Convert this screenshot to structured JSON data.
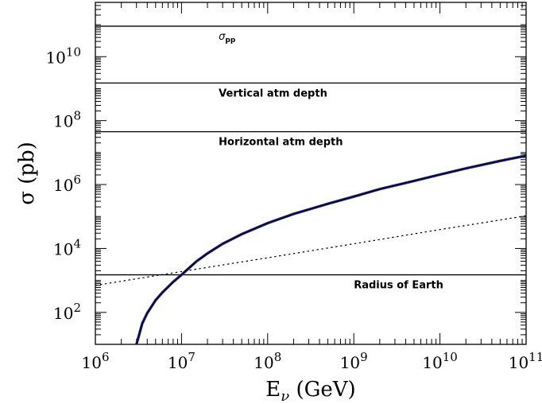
{
  "chart_data": {
    "type": "line",
    "x_scale": "log",
    "y_scale": "log",
    "xlim": [
      1000000.0,
      100000000000.0
    ],
    "ylim": [
      10,
      500000000000.0
    ],
    "grid": false,
    "xlabel": {
      "base": "E",
      "sub": "ν",
      "unit": " (GeV)"
    },
    "ylabel": "σ (pb)",
    "x_ticks": [
      {
        "value": 1000000.0,
        "base": "10",
        "exp": "6"
      },
      {
        "value": 10000000.0,
        "base": "10",
        "exp": "7"
      },
      {
        "value": 100000000.0,
        "base": "10",
        "exp": "8"
      },
      {
        "value": 1000000000.0,
        "base": "10",
        "exp": "9"
      },
      {
        "value": 10000000000.0,
        "base": "10",
        "exp": "10"
      },
      {
        "value": 100000000000.0,
        "base": "10",
        "exp": "11"
      }
    ],
    "y_ticks": [
      {
        "value": 100.0,
        "base": "10",
        "exp": "2"
      },
      {
        "value": 10000.0,
        "base": "10",
        "exp": "4"
      },
      {
        "value": 1000000.0,
        "base": "10",
        "exp": "6"
      },
      {
        "value": 100000000.0,
        "base": "10",
        "exp": "8"
      },
      {
        "value": 10000000000.0,
        "base": "10",
        "exp": "10"
      }
    ],
    "hlines": [
      {
        "y": 90000000000.0,
        "label": "σ",
        "label_sub": "pp",
        "label_x": 27000000.0,
        "label_side": "below"
      },
      {
        "y": 1500000000.0,
        "label": "Vertical atm depth",
        "label_x": 27000000.0,
        "label_side": "below"
      },
      {
        "y": 45000000.0,
        "label": "Horizontal atm depth",
        "label_x": 27000000.0,
        "label_side": "below"
      },
      {
        "y": 1500.0,
        "label": "Radius of Earth",
        "label_x": 1000000000.0,
        "label_side": "below"
      }
    ],
    "series": [
      {
        "style": "solid-blue",
        "color": "#2a2a9c",
        "x": [
          3000000.0,
          3500000.0,
          4000000.0,
          5000000.0,
          6000000.0,
          8000000.0,
          10000000.0,
          15000000.0,
          20000000.0,
          30000000.0,
          50000000.0,
          100000000.0,
          200000000.0,
          500000000.0,
          1000000000.0,
          2000000000.0,
          5000000000.0,
          10000000000.0,
          20000000000.0,
          50000000000.0,
          100000000000.0
        ],
        "y": [
          10,
          45,
          95,
          240,
          420,
          900,
          1500,
          4000,
          7000,
          14000,
          28000,
          62000,
          120000,
          250000,
          420000,
          720000,
          1300000,
          2050000,
          3200000,
          5500000,
          8000000
        ]
      },
      {
        "style": "solid-black",
        "color": "#000000",
        "x": [
          3000000.0,
          3500000.0,
          4000000.0,
          5000000.0,
          6000000.0,
          8000000.0,
          10000000.0,
          15000000.0,
          20000000.0,
          30000000.0,
          50000000.0,
          100000000.0,
          200000000.0,
          500000000.0,
          1000000000.0,
          2000000000.0,
          5000000000.0,
          10000000000.0,
          20000000000.0,
          50000000000.0,
          100000000000.0
        ],
        "y": [
          10,
          45,
          95,
          240,
          420,
          900,
          1500,
          4000,
          7000,
          14000,
          28000,
          62000,
          120000,
          250000,
          420000,
          720000,
          1300000,
          2050000,
          3200000,
          5500000,
          8000000
        ]
      },
      {
        "style": "dotted",
        "color": "#000000",
        "x": [
          1000000.0,
          10000000.0,
          100000000.0,
          1000000000.0,
          10000000000.0,
          100000000000.0
        ],
        "y": [
          700,
          1900,
          5100,
          14000,
          39000,
          105000
        ]
      }
    ]
  }
}
